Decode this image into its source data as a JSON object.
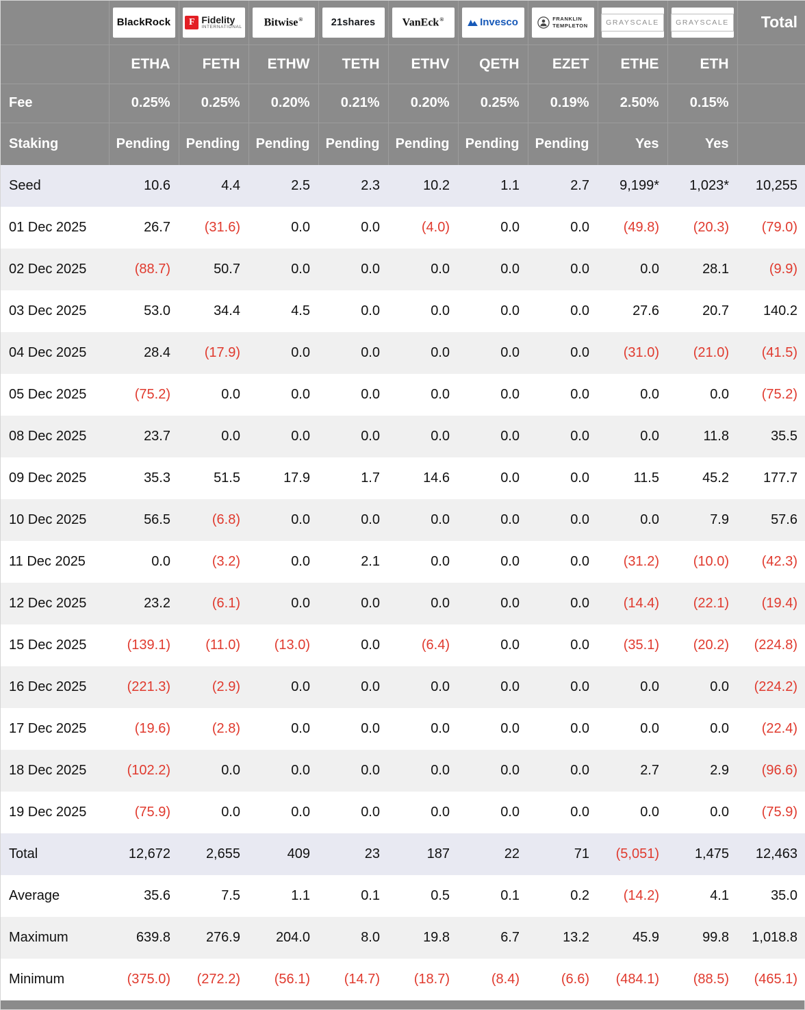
{
  "colors": {
    "header_bg": "#8b8b8b",
    "negative": "#e03a2e",
    "stripe": "#f0f0f0",
    "accent_row": "#e8e9f2",
    "fidelity_red": "#e31e24",
    "invesco_blue": "#1759b8",
    "grayscale_gray": "#8f8f8f"
  },
  "chart_data": {
    "type": "table",
    "corner_label": "",
    "total_header": "Total",
    "providers": [
      {
        "name": "BlackRock"
      },
      {
        "icon_letter": "F",
        "name": "Fidelity",
        "sub": "International"
      },
      {
        "name": "Bitwise",
        "reg": "®"
      },
      {
        "name": "21shares"
      },
      {
        "name": "VanEck",
        "reg": "®"
      },
      {
        "name": "Invesco"
      },
      {
        "line1": "FRANKLIN",
        "line2": "TEMPLETON"
      },
      {
        "name": "GRAYSCALE"
      },
      {
        "name": "GRAYSCALE"
      }
    ],
    "tickers": [
      "ETHA",
      "FETH",
      "ETHW",
      "TETH",
      "ETHV",
      "QETH",
      "EZET",
      "ETHE",
      "ETH"
    ],
    "fee": {
      "label": "Fee",
      "values": [
        "0.25%",
        "0.25%",
        "0.20%",
        "0.21%",
        "0.20%",
        "0.25%",
        "0.19%",
        "2.50%",
        "0.15%"
      ]
    },
    "staking": {
      "label": "Staking",
      "values": [
        "Pending",
        "Pending",
        "Pending",
        "Pending",
        "Pending",
        "Pending",
        "Pending",
        "Yes",
        "Yes"
      ]
    },
    "seed_row": {
      "label": "Seed",
      "values": [
        "10.6",
        "4.4",
        "2.5",
        "2.3",
        "10.2",
        "1.1",
        "2.7",
        "9,199*",
        "1,023*",
        "10,255"
      ]
    },
    "date_rows": [
      {
        "label": "01 Dec 2025",
        "values": [
          "26.7",
          "(31.6)",
          "0.0",
          "0.0",
          "(4.0)",
          "0.0",
          "0.0",
          "(49.8)",
          "(20.3)",
          "(79.0)"
        ]
      },
      {
        "label": "02 Dec 2025",
        "values": [
          "(88.7)",
          "50.7",
          "0.0",
          "0.0",
          "0.0",
          "0.0",
          "0.0",
          "0.0",
          "28.1",
          "(9.9)"
        ]
      },
      {
        "label": "03 Dec 2025",
        "values": [
          "53.0",
          "34.4",
          "4.5",
          "0.0",
          "0.0",
          "0.0",
          "0.0",
          "27.6",
          "20.7",
          "140.2"
        ]
      },
      {
        "label": "04 Dec 2025",
        "values": [
          "28.4",
          "(17.9)",
          "0.0",
          "0.0",
          "0.0",
          "0.0",
          "0.0",
          "(31.0)",
          "(21.0)",
          "(41.5)"
        ]
      },
      {
        "label": "05 Dec 2025",
        "values": [
          "(75.2)",
          "0.0",
          "0.0",
          "0.0",
          "0.0",
          "0.0",
          "0.0",
          "0.0",
          "0.0",
          "(75.2)"
        ]
      },
      {
        "label": "08 Dec 2025",
        "values": [
          "23.7",
          "0.0",
          "0.0",
          "0.0",
          "0.0",
          "0.0",
          "0.0",
          "0.0",
          "11.8",
          "35.5"
        ]
      },
      {
        "label": "09 Dec 2025",
        "values": [
          "35.3",
          "51.5",
          "17.9",
          "1.7",
          "14.6",
          "0.0",
          "0.0",
          "11.5",
          "45.2",
          "177.7"
        ]
      },
      {
        "label": "10 Dec 2025",
        "values": [
          "56.5",
          "(6.8)",
          "0.0",
          "0.0",
          "0.0",
          "0.0",
          "0.0",
          "0.0",
          "7.9",
          "57.6"
        ]
      },
      {
        "label": "11 Dec 2025",
        "values": [
          "0.0",
          "(3.2)",
          "0.0",
          "2.1",
          "0.0",
          "0.0",
          "0.0",
          "(31.2)",
          "(10.0)",
          "(42.3)"
        ]
      },
      {
        "label": "12 Dec 2025",
        "values": [
          "23.2",
          "(6.1)",
          "0.0",
          "0.0",
          "0.0",
          "0.0",
          "0.0",
          "(14.4)",
          "(22.1)",
          "(19.4)"
        ]
      },
      {
        "label": "15 Dec 2025",
        "values": [
          "(139.1)",
          "(11.0)",
          "(13.0)",
          "0.0",
          "(6.4)",
          "0.0",
          "0.0",
          "(35.1)",
          "(20.2)",
          "(224.8)"
        ]
      },
      {
        "label": "16 Dec 2025",
        "values": [
          "(221.3)",
          "(2.9)",
          "0.0",
          "0.0",
          "0.0",
          "0.0",
          "0.0",
          "0.0",
          "0.0",
          "(224.2)"
        ]
      },
      {
        "label": "17 Dec 2025",
        "values": [
          "(19.6)",
          "(2.8)",
          "0.0",
          "0.0",
          "0.0",
          "0.0",
          "0.0",
          "0.0",
          "0.0",
          "(22.4)"
        ]
      },
      {
        "label": "18 Dec 2025",
        "values": [
          "(102.2)",
          "0.0",
          "0.0",
          "0.0",
          "0.0",
          "0.0",
          "0.0",
          "2.7",
          "2.9",
          "(96.6)"
        ]
      },
      {
        "label": "19 Dec 2025",
        "values": [
          "(75.9)",
          "0.0",
          "0.0",
          "0.0",
          "0.0",
          "0.0",
          "0.0",
          "0.0",
          "0.0",
          "(75.9)"
        ]
      }
    ],
    "summary_rows": [
      {
        "label": "Total",
        "values": [
          "12,672",
          "2,655",
          "409",
          "23",
          "187",
          "22",
          "71",
          "(5,051)",
          "1,475",
          "12,463"
        ]
      },
      {
        "label": "Average",
        "values": [
          "35.6",
          "7.5",
          "1.1",
          "0.1",
          "0.5",
          "0.1",
          "0.2",
          "(14.2)",
          "4.1",
          "35.0"
        ]
      },
      {
        "label": "Maximum",
        "values": [
          "639.8",
          "276.9",
          "204.0",
          "8.0",
          "19.8",
          "6.7",
          "13.2",
          "45.9",
          "99.8",
          "1,018.8"
        ]
      },
      {
        "label": "Minimum",
        "values": [
          "(375.0)",
          "(272.2)",
          "(56.1)",
          "(14.7)",
          "(18.7)",
          "(8.4)",
          "(6.6)",
          "(484.1)",
          "(88.5)",
          "(465.1)"
        ]
      }
    ]
  }
}
